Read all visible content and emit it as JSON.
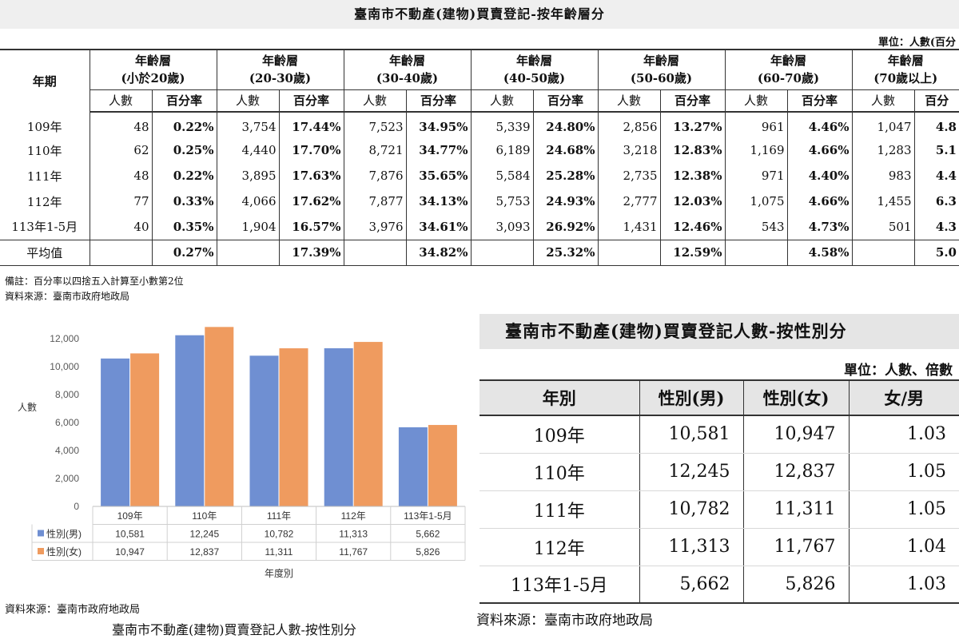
{
  "age_table": {
    "title": "臺南市不動產(建物)買賣登記-按年齡層分",
    "unit": "單位：人數(百分",
    "period_header": "年期",
    "count_header": "人數",
    "pct_header": "百分率",
    "groups": [
      {
        "line1": "年齡層",
        "line2": "(小於20歲)",
        "pct_header": "百分率"
      },
      {
        "line1": "年齡層",
        "line2": "(20-30歲)",
        "pct_header": "百分率"
      },
      {
        "line1": "年齡層",
        "line2": "(30-40歲)",
        "pct_header": "百分率"
      },
      {
        "line1": "年齡層",
        "line2": "(40-50歲)",
        "pct_header": "百分率"
      },
      {
        "line1": "年齡層",
        "line2": "(50-60歲)",
        "pct_header": "百分率"
      },
      {
        "line1": "年齡層",
        "line2": "(60-70歲)",
        "pct_header": "百分率"
      },
      {
        "line1": "年齡層",
        "line2": "(70歲以上)",
        "pct_header": "百分"
      }
    ],
    "rows": [
      {
        "year": "109年",
        "cells": [
          [
            "48",
            "0.22%"
          ],
          [
            "3,754",
            "17.44%"
          ],
          [
            "7,523",
            "34.95%"
          ],
          [
            "5,339",
            "24.80%"
          ],
          [
            "2,856",
            "13.27%"
          ],
          [
            "961",
            "4.46%"
          ],
          [
            "1,047",
            "4.8"
          ]
        ]
      },
      {
        "year": "110年",
        "cells": [
          [
            "62",
            "0.25%"
          ],
          [
            "4,440",
            "17.70%"
          ],
          [
            "8,721",
            "34.77%"
          ],
          [
            "6,189",
            "24.68%"
          ],
          [
            "3,218",
            "12.83%"
          ],
          [
            "1,169",
            "4.66%"
          ],
          [
            "1,283",
            "5.1"
          ]
        ]
      },
      {
        "year": "111年",
        "cells": [
          [
            "48",
            "0.22%"
          ],
          [
            "3,895",
            "17.63%"
          ],
          [
            "7,876",
            "35.65%"
          ],
          [
            "5,584",
            "25.28%"
          ],
          [
            "2,735",
            "12.38%"
          ],
          [
            "971",
            "4.40%"
          ],
          [
            "983",
            "4.4"
          ]
        ]
      },
      {
        "year": "112年",
        "cells": [
          [
            "77",
            "0.33%"
          ],
          [
            "4,066",
            "17.62%"
          ],
          [
            "7,877",
            "34.13%"
          ],
          [
            "5,753",
            "24.93%"
          ],
          [
            "2,777",
            "12.03%"
          ],
          [
            "1,075",
            "4.66%"
          ],
          [
            "1,455",
            "6.3"
          ]
        ]
      },
      {
        "year": "113年1-5月",
        "cells": [
          [
            "40",
            "0.35%"
          ],
          [
            "1,904",
            "16.57%"
          ],
          [
            "3,976",
            "34.61%"
          ],
          [
            "3,093",
            "26.92%"
          ],
          [
            "1,431",
            "12.46%"
          ],
          [
            "543",
            "4.73%"
          ],
          [
            "501",
            "4.3"
          ]
        ]
      }
    ],
    "average": {
      "label": "平均值",
      "values": [
        "0.27%",
        "17.39%",
        "34.82%",
        "25.32%",
        "12.59%",
        "4.58%",
        "5.0"
      ]
    },
    "note": "備註：百分率以四捨五入計算至小數第2位",
    "source": "資料來源：臺南市政府地政局"
  },
  "chart_data": {
    "type": "bar",
    "categories": [
      "109年",
      "110年",
      "111年",
      "112年",
      "113年1-5月"
    ],
    "series": [
      {
        "name": "性別(男)",
        "values": [
          10581,
          12245,
          10782,
          11313,
          5662
        ],
        "labels": [
          "10,581",
          "12,245",
          "10,782",
          "11,313",
          "5,662"
        ],
        "color": "#6f8fd2"
      },
      {
        "name": "性別(女)",
        "values": [
          10947,
          12837,
          11311,
          11767,
          5826
        ],
        "labels": [
          "10,947",
          "12,837",
          "11,311",
          "11,767",
          "5,826"
        ],
        "color": "#ef9b5f"
      }
    ],
    "ylabel": "人數",
    "xlabel": "年度別",
    "ylim": [
      0,
      12000
    ],
    "yticks": [
      0,
      2000,
      4000,
      6000,
      8000,
      10000,
      12000
    ],
    "ytick_labels": [
      "0",
      "2,000",
      "4,000",
      "6,000",
      "8,000",
      "10,000",
      "12,000"
    ],
    "grid": false,
    "legend": "data-table"
  },
  "chart_footer": {
    "source": "資料來源：臺南市政府地政局",
    "caption": "臺南市不動產(建物)買賣登記人數-按性別分"
  },
  "gender_table": {
    "title": "臺南市不動產(建物)買賣登記人數-按性別分",
    "unit": "單位：人數、倍數",
    "headers": [
      "年別",
      "性別(男)",
      "性別(女)",
      "女/男"
    ],
    "rows": [
      [
        "109年",
        "10,581",
        "10,947",
        "1.03"
      ],
      [
        "110年",
        "12,245",
        "12,837",
        "1.05"
      ],
      [
        "111年",
        "10,782",
        "11,311",
        "1.05"
      ],
      [
        "112年",
        "11,313",
        "11,767",
        "1.04"
      ],
      [
        "113年1-5月",
        "5,662",
        "5,826",
        "1.03"
      ]
    ],
    "source": "資料來源：臺南市政府地政局"
  }
}
